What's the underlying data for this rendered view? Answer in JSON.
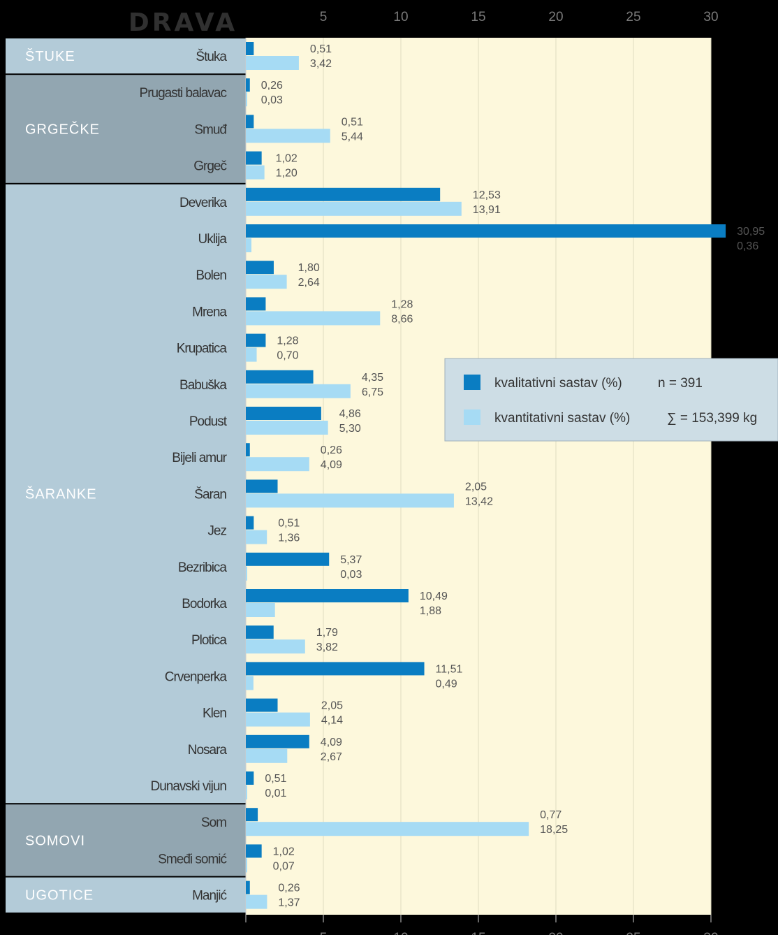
{
  "chart_data": {
    "type": "bar",
    "title": "DRAVA",
    "xlim": [
      0,
      30
    ],
    "x_ticks": [
      5,
      10,
      15,
      20,
      25,
      30
    ],
    "grid": true,
    "legend_position": "right",
    "series": [
      {
        "name": "kvalitativni sastav (%)",
        "note": "n = 391",
        "color": "#0a7dc2"
      },
      {
        "name": "kvantitativni sastav (%)",
        "note": "∑ = 153,399 kg",
        "color": "#a6dbf4"
      }
    ],
    "groups": [
      {
        "name": "ŠTUKE",
        "tone": "light",
        "items": [
          {
            "label": "Štuka",
            "q1": 0.51,
            "q2": 3.42,
            "q1_text": "0,51",
            "q2_text": "3,42"
          }
        ]
      },
      {
        "name": "GRGEČKE",
        "tone": "dark",
        "items": [
          {
            "label": "Prugasti balavac",
            "q1": 0.26,
            "q2": 0.03,
            "q1_text": "0,26",
            "q2_text": "0,03"
          },
          {
            "label": "Smuđ",
            "q1": 0.51,
            "q2": 5.44,
            "q1_text": "0,51",
            "q2_text": "5,44"
          },
          {
            "label": "Grgeč",
            "q1": 1.02,
            "q2": 1.2,
            "q1_text": "1,02",
            "q2_text": "1,20"
          }
        ]
      },
      {
        "name": "ŠARANKE",
        "tone": "light",
        "items": [
          {
            "label": "Deverika",
            "q1": 12.53,
            "q2": 13.91,
            "q1_text": "12,53",
            "q2_text": "13,91"
          },
          {
            "label": "Uklija",
            "q1": 30.95,
            "q2": 0.36,
            "q1_text": "30,95",
            "q2_text": "0,36"
          },
          {
            "label": "Bolen",
            "q1": 1.8,
            "q2": 2.64,
            "q1_text": "1,80",
            "q2_text": "2,64"
          },
          {
            "label": "Mrena",
            "q1": 1.28,
            "q2": 8.66,
            "q1_text": "1,28",
            "q2_text": "8,66"
          },
          {
            "label": "Krupatica",
            "q1": 1.28,
            "q2": 0.7,
            "q1_text": "1,28",
            "q2_text": "0,70"
          },
          {
            "label": "Babuška",
            "q1": 4.35,
            "q2": 6.75,
            "q1_text": "4,35",
            "q2_text": "6,75"
          },
          {
            "label": "Podust",
            "q1": 4.86,
            "q2": 5.3,
            "q1_text": "4,86",
            "q2_text": "5,30"
          },
          {
            "label": "Bijeli amur",
            "q1": 0.26,
            "q2": 4.09,
            "q1_text": "0,26",
            "q2_text": "4,09"
          },
          {
            "label": "Šaran",
            "q1": 2.05,
            "q2": 13.42,
            "q1_text": "2,05",
            "q2_text": "13,42"
          },
          {
            "label": "Jez",
            "q1": 0.51,
            "q2": 1.36,
            "q1_text": "0,51",
            "q2_text": "1,36"
          },
          {
            "label": "Bezribica",
            "q1": 5.37,
            "q2": 0.03,
            "q1_text": "5,37",
            "q2_text": "0,03"
          },
          {
            "label": "Bodorka",
            "q1": 10.49,
            "q2": 1.88,
            "q1_text": "10,49",
            "q2_text": "1,88"
          },
          {
            "label": "Plotica",
            "q1": 1.79,
            "q2": 3.82,
            "q1_text": "1,79",
            "q2_text": "3,82"
          },
          {
            "label": "Crvenperka",
            "q1": 11.51,
            "q2": 0.49,
            "q1_text": "11,51",
            "q2_text": "0,49"
          },
          {
            "label": "Klen",
            "q1": 2.05,
            "q2": 4.14,
            "q1_text": "2,05",
            "q2_text": "4,14"
          },
          {
            "label": "Nosara",
            "q1": 4.09,
            "q2": 2.67,
            "q1_text": "4,09",
            "q2_text": "2,67"
          },
          {
            "label": "Dunavski vijun",
            "q1": 0.51,
            "q2": 0.01,
            "q1_text": "0,51",
            "q2_text": "0,01"
          }
        ]
      },
      {
        "name": "SOMOVI",
        "tone": "dark",
        "items": [
          {
            "label": "Som",
            "q1": 0.77,
            "q2": 18.25,
            "q1_text": "0,77",
            "q2_text": "18,25"
          },
          {
            "label": "Smeđi somić",
            "q1": 1.02,
            "q2": 0.07,
            "q1_text": "1,02",
            "q2_text": "0,07"
          }
        ]
      },
      {
        "name": "UGOTICE",
        "tone": "light",
        "items": [
          {
            "label": "Manjić",
            "q1": 0.26,
            "q2": 1.37,
            "q1_text": "0,26",
            "q2_text": "1,37"
          }
        ]
      }
    ]
  },
  "colors": {
    "background": "#000000",
    "plot_area": "#fdf8dc",
    "grid": "#e0dcc0",
    "group_light": "#b3cbd8",
    "group_dark": "#92a6b1",
    "legend_bg": "#cddde5"
  }
}
